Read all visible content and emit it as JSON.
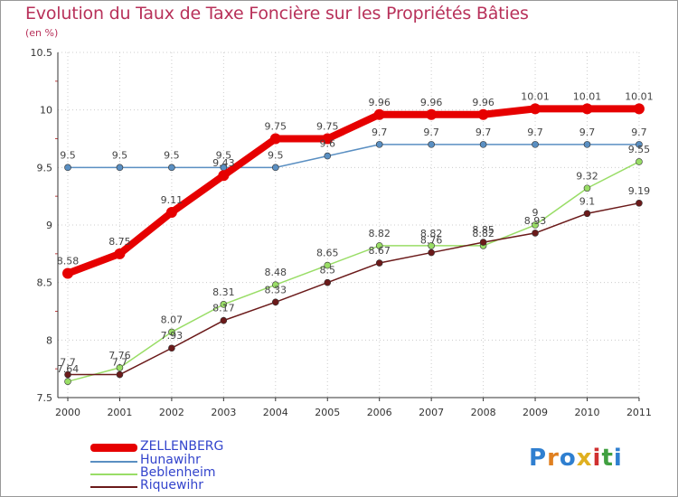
{
  "title": "Evolution du Taux de Taxe Foncière sur les Propriétés Bâties",
  "unit": "(en %)",
  "logo": "Proxiti",
  "colors": {
    "title": "#b8315a",
    "zellenberg": "#e60000",
    "hunawihr": "#5a8fc2",
    "beblenheim": "#99dd66",
    "riquewihr": "#6b1a1a",
    "grid": "#cccccc"
  },
  "chart_data": {
    "type": "line",
    "title": "Evolution du Taux de Taxe Foncière sur les Propriétés Bâties",
    "ylabel": "(en %)",
    "xlabel": "",
    "ylim": [
      7.5,
      10.5
    ],
    "yticks": [
      "7.5",
      "8",
      "8.5",
      "9",
      "9.5",
      "10",
      "10.5"
    ],
    "grid": true,
    "legend": "bottom-left",
    "categories": [
      "2000",
      "2001",
      "2002",
      "2003",
      "2004",
      "2005",
      "2006",
      "2007",
      "2008",
      "2009",
      "2010",
      "2011"
    ],
    "series": [
      {
        "name": "ZELLENBERG",
        "values": [
          8.58,
          8.75,
          9.11,
          9.43,
          9.75,
          9.75,
          9.96,
          9.96,
          9.96,
          10.01,
          10.01,
          10.01
        ],
        "labels": [
          "8.58",
          "8.75",
          "9.11",
          "9.43",
          "9.75",
          "9.75",
          "9.96",
          "9.96",
          "9.96",
          "10.01",
          "10.01",
          "10.01"
        ]
      },
      {
        "name": "Hunawihr",
        "values": [
          9.5,
          9.5,
          9.5,
          9.5,
          9.5,
          9.6,
          9.7,
          9.7,
          9.7,
          9.7,
          9.7,
          9.7
        ],
        "labels": [
          "9.5",
          "9.5",
          "9.5",
          "9.5",
          "9.5",
          "9.6",
          "9.7",
          "9.7",
          "9.7",
          "9.7",
          "9.7",
          "9.7"
        ]
      },
      {
        "name": "Beblenheim",
        "values": [
          7.64,
          7.76,
          8.07,
          8.31,
          8.48,
          8.65,
          8.82,
          8.82,
          8.82,
          9.0,
          9.32,
          9.55
        ],
        "labels": [
          "7.64",
          "7.76",
          "8.07",
          "8.31",
          "8.48",
          "8.65",
          "8.82",
          "8.82",
          "8.82",
          "9",
          "9.32",
          "9.55"
        ]
      },
      {
        "name": "Riquewihr",
        "values": [
          7.7,
          7.7,
          7.93,
          8.17,
          8.33,
          8.5,
          8.67,
          8.76,
          8.85,
          8.93,
          9.1,
          9.19
        ],
        "labels": [
          "7.7",
          "7.7",
          "7.93",
          "8.17",
          "8.33",
          "8.5",
          "8.67",
          "8.76",
          "8.85",
          "8.93",
          "9.1",
          "9.19"
        ]
      }
    ]
  }
}
